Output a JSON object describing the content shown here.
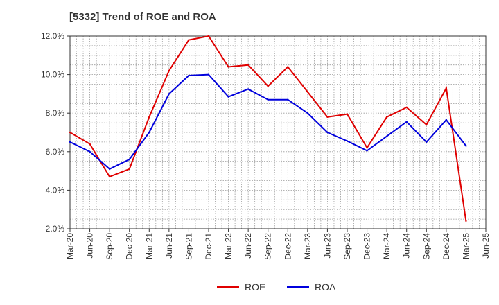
{
  "chart_data": {
    "type": "line",
    "title": "[5332]  Trend of ROE and ROA",
    "x": [
      "Mar-20",
      "Jun-20",
      "Sep-20",
      "Dec-20",
      "Mar-21",
      "Jun-21",
      "Sep-21",
      "Dec-21",
      "Mar-22",
      "Jun-22",
      "Sep-22",
      "Dec-22",
      "Mar-23",
      "Jun-23",
      "Sep-23",
      "Dec-23",
      "Mar-24",
      "Jun-24",
      "Sep-24",
      "Dec-24",
      "Mar-25",
      "Jun-25"
    ],
    "ylim": [
      2.0,
      12.0
    ],
    "yticks": [
      "2.0%",
      "4.0%",
      "6.0%",
      "8.0%",
      "10.0%",
      "12.0%"
    ],
    "grid": true,
    "legend_position": "bottom",
    "series": [
      {
        "name": "ROE",
        "color": "#e00000",
        "values": [
          7.0,
          6.4,
          4.7,
          5.1,
          7.8,
          10.2,
          11.8,
          12.0,
          10.4,
          10.5,
          9.4,
          10.4,
          9.1,
          7.8,
          7.95,
          6.2,
          7.8,
          8.3,
          7.4,
          9.3,
          2.4,
          null
        ]
      },
      {
        "name": "ROA",
        "color": "#0000dd",
        "values": [
          6.5,
          6.0,
          5.1,
          5.6,
          7.0,
          9.0,
          9.95,
          10.0,
          8.85,
          9.25,
          8.7,
          8.7,
          8.0,
          7.0,
          6.55,
          6.05,
          6.8,
          7.55,
          6.5,
          7.65,
          6.3,
          null
        ]
      }
    ]
  }
}
